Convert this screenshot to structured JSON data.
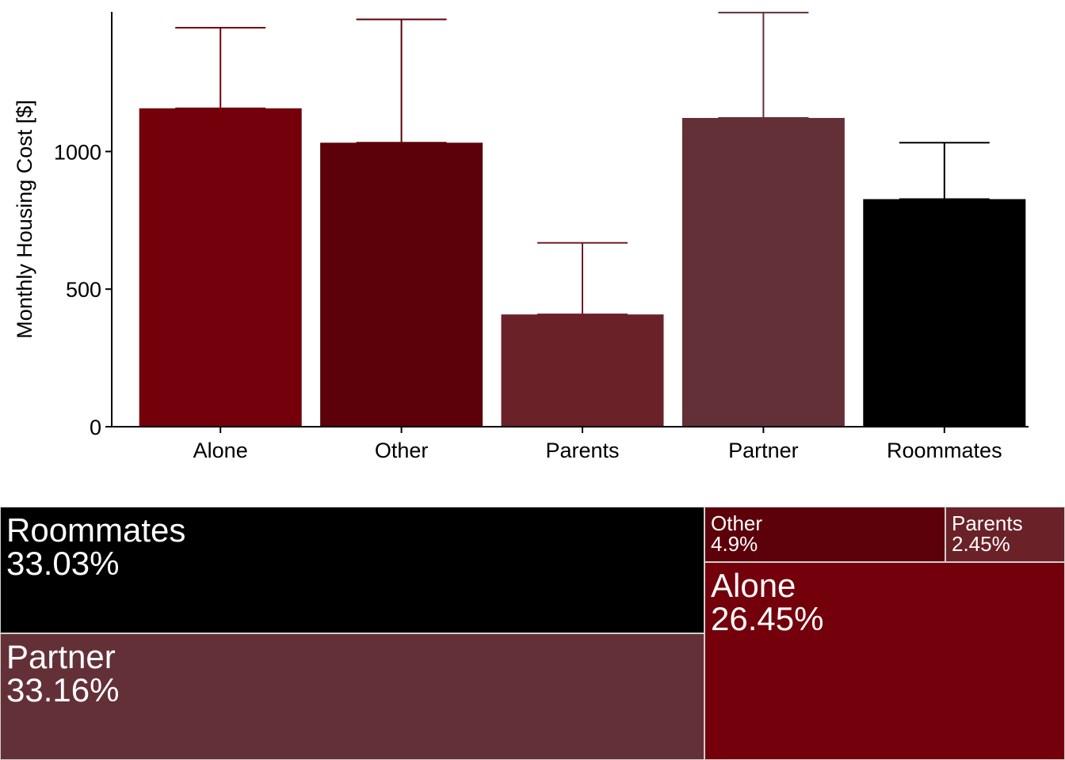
{
  "chart_data": [
    {
      "type": "bar",
      "title": "",
      "xlabel": "",
      "ylabel": "Monthly Housing Cost [$]",
      "categories": [
        "Alone",
        "Other",
        "Parents",
        "Partner",
        "Roommates"
      ],
      "values": [
        1157,
        1032,
        408,
        1122,
        827
      ],
      "error_upper": [
        1450,
        1480,
        668,
        1505,
        1032
      ],
      "colors": [
        "#73000b",
        "#5c000a",
        "#6b2128",
        "#643037",
        "#000000"
      ],
      "yticks": [
        0,
        500,
        1000
      ],
      "ylim": [
        0,
        1510
      ],
      "grid": false,
      "legend": "none"
    },
    {
      "type": "treemap",
      "title": "",
      "categories": [
        "Roommates",
        "Partner",
        "Alone",
        "Other",
        "Parents"
      ],
      "values": [
        33.03,
        33.16,
        26.45,
        4.9,
        2.45
      ],
      "value_labels": [
        "33.03%",
        "33.16%",
        "26.45%",
        "4.9%",
        "2.45%"
      ],
      "colors": [
        "#000000",
        "#643037",
        "#73000b",
        "#5c000a",
        "#6b2128"
      ],
      "legend": "none"
    }
  ]
}
